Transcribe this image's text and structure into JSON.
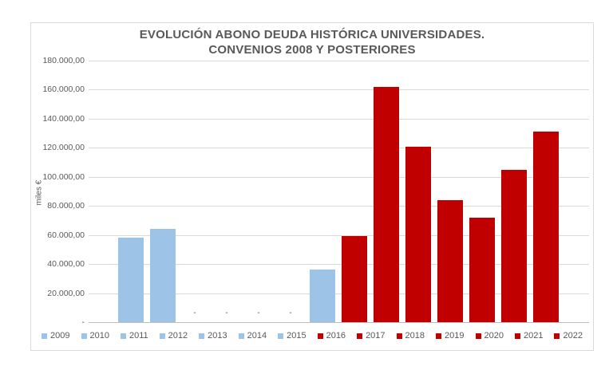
{
  "chart_data": {
    "type": "bar",
    "title": "EVOLUCIÓN ABONO DEUDA HISTÓRICA UNIVERSIDADES. CONVENIOS 2008 Y POSTERIORES",
    "title_lines": [
      "EVOLUCIÓN ABONO DEUDA HISTÓRICA UNIVERSIDADES.",
      "CONVENIOS 2008 Y POSTERIORES"
    ],
    "ylabel": "miles €",
    "xlabel": "",
    "ylim": [
      0,
      180000
    ],
    "ytick_step": 20000,
    "ytick_labels": [
      "180.000,00",
      "160.000,00",
      "140.000,00",
      "120.000,00",
      "100.000,00",
      "80.000,00",
      "60.000,00",
      "40.000,00",
      "20.000,00",
      "-"
    ],
    "grid": true,
    "legend_position": "bottom",
    "zero_value_display": "-",
    "colors": {
      "blue_series": "#9DC3E6",
      "red_series": "#C00000",
      "text": "#595959",
      "gridline": "#D9D9D9",
      "axis_line": "#BFBFBF"
    },
    "series": [
      {
        "name": "2009",
        "value": 58000,
        "color": "#9DC3E6"
      },
      {
        "name": "2010",
        "value": 64000,
        "color": "#9DC3E6"
      },
      {
        "name": "2011",
        "value": 0,
        "color": "#9DC3E6",
        "data_label": "-"
      },
      {
        "name": "2012",
        "value": 0,
        "color": "#9DC3E6",
        "data_label": "-"
      },
      {
        "name": "2013",
        "value": 0,
        "color": "#9DC3E6",
        "data_label": "-"
      },
      {
        "name": "2014",
        "value": 0,
        "color": "#9DC3E6",
        "data_label": "-"
      },
      {
        "name": "2015",
        "value": 36000,
        "color": "#9DC3E6"
      },
      {
        "name": "2016",
        "value": 59000,
        "color": "#C00000"
      },
      {
        "name": "2017",
        "value": 162000,
        "color": "#C00000"
      },
      {
        "name": "2018",
        "value": 121000,
        "color": "#C00000"
      },
      {
        "name": "2019",
        "value": 84000,
        "color": "#C00000"
      },
      {
        "name": "2020",
        "value": 72000,
        "color": "#C00000"
      },
      {
        "name": "2021",
        "value": 105000,
        "color": "#C00000"
      },
      {
        "name": "2022",
        "value": 131000,
        "color": "#C00000"
      }
    ]
  }
}
